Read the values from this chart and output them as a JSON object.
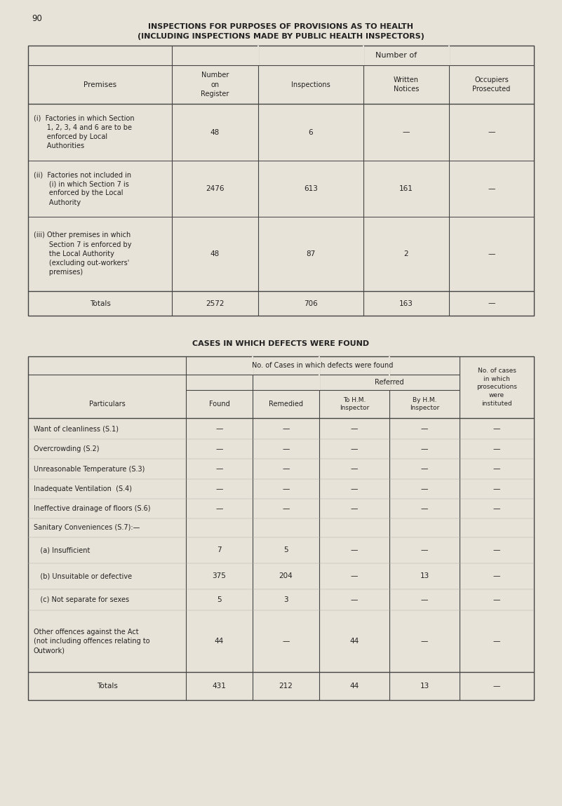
{
  "page_number": "90",
  "title_line1": "INSPECTIONS FOR PURPOSES OF PROVISIONS AS TO HEALTH",
  "title_line2": "(INCLUDING INSPECTIONS MADE BY PUBLIC HEALTH INSPECTORS)",
  "table1": {
    "rows": [
      {
        "label": "(i)  Factories in which Section\n      1, 2, 3, 4 and 6 are to be\n      enforced by Local\n      Authorities",
        "values": [
          "48",
          "6",
          "—",
          "—"
        ]
      },
      {
        "label": "(ii)  Factories not included in\n       (i) in which Section 7 is\n       enforced by the Local\n       Authority",
        "values": [
          "2476",
          "613",
          "161",
          "—"
        ]
      },
      {
        "label": "(iii) Other premises in which\n       Section 7 is enforced by\n       the Local Authority\n       (excluding out-workers'\n       premises)",
        "values": [
          "48",
          "87",
          "2",
          "—"
        ]
      }
    ],
    "totals_label": "Totals",
    "totals_values": [
      "2572",
      "706",
      "163",
      "—"
    ]
  },
  "table2_title": "CASES IN WHICH DEFECTS WERE FOUND",
  "table2": {
    "rows": [
      {
        "label": "Want of cleanliness (S.1)",
        "values": [
          "—",
          "—",
          "—",
          "—",
          "—"
        ]
      },
      {
        "label": "Overcrowding (S.2)",
        "values": [
          "—",
          "—",
          "—",
          "—",
          "—"
        ]
      },
      {
        "label": "Unreasonable Temperature (S.3)",
        "values": [
          "—",
          "—",
          "—",
          "—",
          "—"
        ]
      },
      {
        "label": "Inadequate Ventilation  (S.4)",
        "values": [
          "—",
          "—",
          "—",
          "—",
          "—"
        ]
      },
      {
        "label": "Ineffective drainage of floors (S.6)",
        "values": [
          "—",
          "—",
          "—",
          "—",
          "—"
        ]
      },
      {
        "label": "Sanitary Conveniences (S.7):—",
        "values": [
          "",
          "",
          "",
          "",
          ""
        ]
      },
      {
        "label": "   (a) Insufficient",
        "values": [
          "7",
          "5",
          "—",
          "—",
          "—"
        ]
      },
      {
        "label": "   (b) Unsuitable or defective",
        "values": [
          "375",
          "204",
          "—",
          "13",
          "—"
        ]
      },
      {
        "label": "   (c) Not separate for sexes",
        "values": [
          "5",
          "3",
          "—",
          "—",
          "—"
        ]
      },
      {
        "label": "Other offences against the Act\n(not including offences relating to\nOutwork)",
        "values": [
          "44",
          "—",
          "44",
          "—",
          "—"
        ]
      }
    ],
    "totals_label": "Totals",
    "totals_values": [
      "431",
      "212",
      "44",
      "13",
      "—"
    ]
  },
  "paper_color": "#e8e3d8",
  "text_color": "#222222",
  "line_color": "#444444"
}
